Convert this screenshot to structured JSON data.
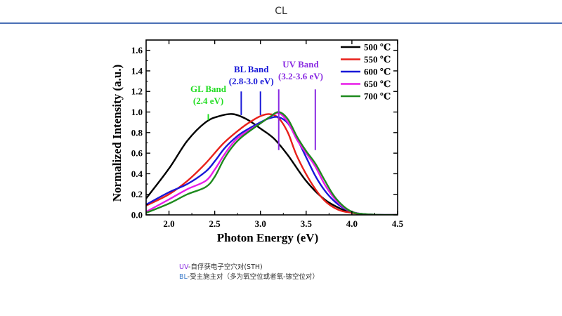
{
  "slide": {
    "title": "CL"
  },
  "notes": [
    {
      "abbr": "UV",
      "abbr_color": "#8a2be2",
      "text": "-自俘获电子空穴对(STH)"
    },
    {
      "abbr": "BL",
      "abbr_color": "#3d7cc9",
      "text": "-受主施主对（多为氧空位或者氧-镓空位对）"
    }
  ],
  "chart_data": {
    "type": "line",
    "xlabel": "Photon Energy (eV)",
    "ylabel": "Normalized Intensity (a.u.)",
    "xlim": [
      1.75,
      4.5
    ],
    "ylim": [
      0.0,
      1.7
    ],
    "xticks": [
      "2.0",
      "2.5",
      "3.0",
      "3.5",
      "4.0",
      "4.5"
    ],
    "yticks": [
      "0.0",
      "0.2",
      "0.4",
      "0.6",
      "0.8",
      "1.0",
      "1.2",
      "1.4",
      "1.6"
    ],
    "legend_position": "top-right",
    "grid": false,
    "series": [
      {
        "name": "500 ℃",
        "color": "#000000",
        "x": [
          1.75,
          2.0,
          2.2,
          2.4,
          2.55,
          2.7,
          2.85,
          3.0,
          3.15,
          3.3,
          3.5,
          3.7,
          3.9,
          4.0,
          4.1,
          4.3,
          4.5
        ],
        "y": [
          0.16,
          0.45,
          0.72,
          0.9,
          0.96,
          0.98,
          0.93,
          0.84,
          0.74,
          0.58,
          0.33,
          0.15,
          0.05,
          0.02,
          0.01,
          0.0,
          0.0
        ]
      },
      {
        "name": "550 ℃",
        "color": "#e8201a",
        "x": [
          1.75,
          2.0,
          2.2,
          2.4,
          2.6,
          2.8,
          2.9,
          3.0,
          3.1,
          3.2,
          3.3,
          3.4,
          3.55,
          3.7,
          3.85,
          4.0,
          4.2,
          4.5
        ],
        "y": [
          0.09,
          0.2,
          0.33,
          0.5,
          0.7,
          0.85,
          0.91,
          0.96,
          0.98,
          0.94,
          0.8,
          0.57,
          0.32,
          0.14,
          0.05,
          0.02,
          0.0,
          0.0
        ]
      },
      {
        "name": "600 ℃",
        "color": "#1818d8",
        "x": [
          1.75,
          2.0,
          2.2,
          2.4,
          2.5,
          2.6,
          2.7,
          2.8,
          3.0,
          3.1,
          3.2,
          3.3,
          3.4,
          3.5,
          3.6,
          3.7,
          3.8,
          3.9,
          4.0,
          4.1,
          4.3,
          4.5
        ],
        "y": [
          0.1,
          0.22,
          0.3,
          0.42,
          0.52,
          0.64,
          0.73,
          0.8,
          0.9,
          0.94,
          0.95,
          0.89,
          0.74,
          0.56,
          0.38,
          0.24,
          0.14,
          0.07,
          0.03,
          0.01,
          0.0,
          0.0
        ]
      },
      {
        "name": "650 ℃",
        "color": "#e81ce8",
        "x": [
          1.75,
          2.0,
          2.2,
          2.4,
          2.5,
          2.6,
          2.7,
          2.8,
          3.0,
          3.1,
          3.2,
          3.3,
          3.4,
          3.5,
          3.6,
          3.7,
          3.8,
          3.9,
          4.0,
          4.1,
          4.3,
          4.5
        ],
        "y": [
          0.03,
          0.15,
          0.25,
          0.33,
          0.44,
          0.58,
          0.7,
          0.78,
          0.89,
          0.95,
          0.99,
          0.9,
          0.73,
          0.6,
          0.47,
          0.3,
          0.17,
          0.08,
          0.03,
          0.01,
          0.0,
          0.0
        ]
      },
      {
        "name": "700 ℃",
        "color": "#1e8a1e",
        "x": [
          1.75,
          2.0,
          2.2,
          2.4,
          2.5,
          2.6,
          2.7,
          2.8,
          3.0,
          3.1,
          3.2,
          3.3,
          3.4,
          3.5,
          3.6,
          3.7,
          3.8,
          3.9,
          4.0,
          4.1,
          4.3,
          4.5
        ],
        "y": [
          0.02,
          0.11,
          0.2,
          0.27,
          0.37,
          0.54,
          0.67,
          0.76,
          0.89,
          0.95,
          1.0,
          0.93,
          0.76,
          0.62,
          0.5,
          0.34,
          0.19,
          0.09,
          0.03,
          0.01,
          0.0,
          0.0
        ]
      }
    ],
    "annotations": [
      {
        "lines": [
          "GL Band",
          "(2.4 eV)"
        ],
        "color": "#22dd22",
        "x": 2.43,
        "marker_x": 2.43,
        "marker_y": [
          0.92,
          0.98
        ]
      },
      {
        "lines": [
          "BL Band",
          "(2.8-3.0 eV)"
        ],
        "color": "#1818d8",
        "x": 2.9,
        "marker_x": [
          2.79,
          3.0
        ],
        "marker_y": [
          0.97,
          1.2
        ]
      },
      {
        "lines": [
          "UV Band",
          "(3.2-3.6 eV)"
        ],
        "color": "#8a2be2",
        "x": 3.44,
        "marker_x": [
          3.2,
          3.6
        ],
        "marker_y": [
          0.63,
          1.22
        ]
      }
    ]
  }
}
